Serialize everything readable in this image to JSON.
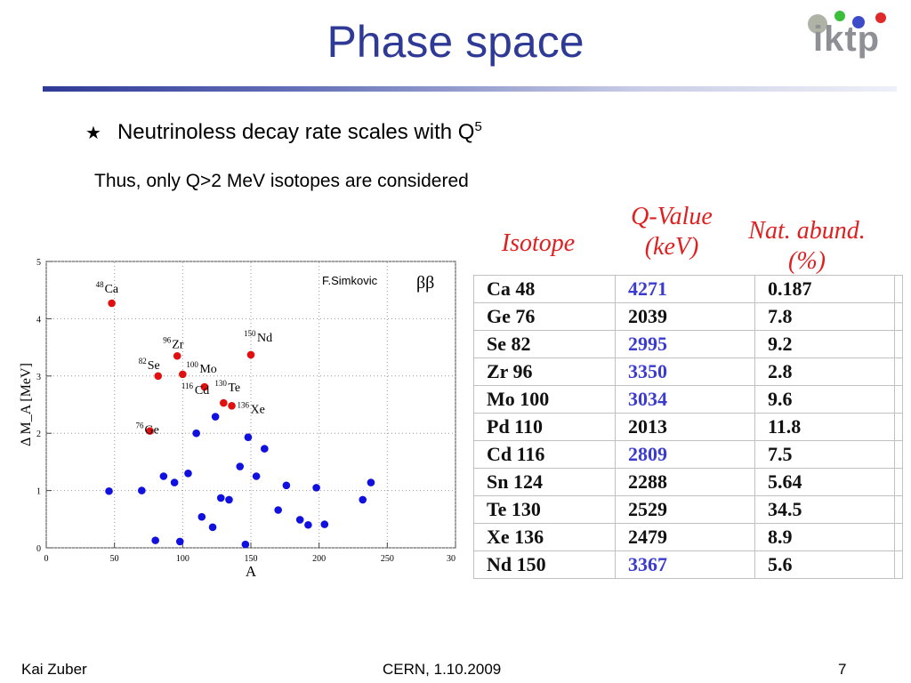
{
  "slide": {
    "title": "Phase space",
    "logo_text": "iktp",
    "bullet": "Neutrinoless decay rate scales with Q",
    "bullet_sup": "5",
    "subtext": "Thus, only Q>2 MeV isotopes are considered",
    "footer_left": "Kai Zuber",
    "footer_center": "CERN, 1.10.2009",
    "footer_right": "7"
  },
  "table": {
    "headers": [
      "Isotope",
      "Q-Value",
      "(keV)",
      "Nat. abund.",
      "(%)"
    ],
    "rows": [
      {
        "isotope": "Ca 48",
        "q": "4271",
        "abund": "0.187",
        "q_color": "#3b3bd0"
      },
      {
        "isotope": "Ge 76",
        "q": "2039",
        "abund": "7.8",
        "q_color": "#111111"
      },
      {
        "isotope": "Se 82",
        "q": "2995",
        "abund": "9.2",
        "q_color": "#3b3bd0"
      },
      {
        "isotope": "Zr 96",
        "q": "3350",
        "abund": "2.8",
        "q_color": "#3b3bd0"
      },
      {
        "isotope": "Mo 100",
        "q": "3034",
        "abund": "9.6",
        "q_color": "#3b3bd0"
      },
      {
        "isotope": "Pd 110",
        "q": "2013",
        "abund": "11.8",
        "q_color": "#111111"
      },
      {
        "isotope": "Cd 116",
        "q": "2809",
        "abund": "7.5",
        "q_color": "#3b3bd0"
      },
      {
        "isotope": "Sn 124",
        "q": "2288",
        "abund": "5.64",
        "q_color": "#111111"
      },
      {
        "isotope": "Te 130",
        "q": "2529",
        "abund": "34.5",
        "q_color": "#111111"
      },
      {
        "isotope": "Xe 136",
        "q": "2479",
        "abund": "8.9",
        "q_color": "#111111"
      },
      {
        "isotope": "Nd 150",
        "q": "3367",
        "abund": "5.6",
        "q_color": "#3b3bd0"
      }
    ]
  },
  "chart_data": {
    "type": "scatter",
    "xlabel": "A",
    "ylabel": "Δ M_A [MeV]",
    "xlim": [
      0,
      300
    ],
    "ylim": [
      0,
      5
    ],
    "x_ticks": [
      "0",
      "50",
      "100",
      "150",
      "200",
      "250",
      "30"
    ],
    "y_ticks": [
      "0",
      "1",
      "2",
      "3",
      "4",
      "5"
    ],
    "credit": "F.Simkovic",
    "tag": "ββ",
    "series": [
      {
        "color": "#e01010",
        "points": [
          {
            "x": 48,
            "y": 4.27,
            "mass": "48",
            "sym": "Ca"
          },
          {
            "x": 76,
            "y": 2.04,
            "mass": "76",
            "sym": "Ge"
          },
          {
            "x": 82,
            "y": 3.0,
            "mass": "82",
            "sym": "Se"
          },
          {
            "x": 96,
            "y": 3.35,
            "mass": "96",
            "sym": "Zr"
          },
          {
            "x": 100,
            "y": 3.03,
            "mass": "100",
            "sym": "Mo"
          },
          {
            "x": 116,
            "y": 2.81,
            "mass": "116",
            "sym": "Cd"
          },
          {
            "x": 130,
            "y": 2.53,
            "mass": "130",
            "sym": "Te"
          },
          {
            "x": 136,
            "y": 2.48,
            "mass": "136",
            "sym": "Xe"
          },
          {
            "x": 150,
            "y": 3.37,
            "mass": "150",
            "sym": "Nd"
          }
        ]
      },
      {
        "color": "#1010e0",
        "points": [
          {
            "x": 46,
            "y": 0.99
          },
          {
            "x": 70,
            "y": 1.0
          },
          {
            "x": 80,
            "y": 0.13
          },
          {
            "x": 86,
            "y": 1.25
          },
          {
            "x": 94,
            "y": 1.14
          },
          {
            "x": 98,
            "y": 0.11
          },
          {
            "x": 104,
            "y": 1.3
          },
          {
            "x": 110,
            "y": 2.0
          },
          {
            "x": 114,
            "y": 0.54
          },
          {
            "x": 122,
            "y": 0.36
          },
          {
            "x": 124,
            "y": 2.29
          },
          {
            "x": 128,
            "y": 0.87
          },
          {
            "x": 134,
            "y": 0.84
          },
          {
            "x": 142,
            "y": 1.42
          },
          {
            "x": 146,
            "y": 0.06
          },
          {
            "x": 148,
            "y": 1.93
          },
          {
            "x": 154,
            "y": 1.25
          },
          {
            "x": 160,
            "y": 1.73
          },
          {
            "x": 170,
            "y": 0.66
          },
          {
            "x": 176,
            "y": 1.09
          },
          {
            "x": 186,
            "y": 0.49
          },
          {
            "x": 192,
            "y": 0.4
          },
          {
            "x": 198,
            "y": 1.05
          },
          {
            "x": 204,
            "y": 0.41
          },
          {
            "x": 232,
            "y": 0.84
          },
          {
            "x": 238,
            "y": 1.14
          }
        ]
      }
    ]
  }
}
